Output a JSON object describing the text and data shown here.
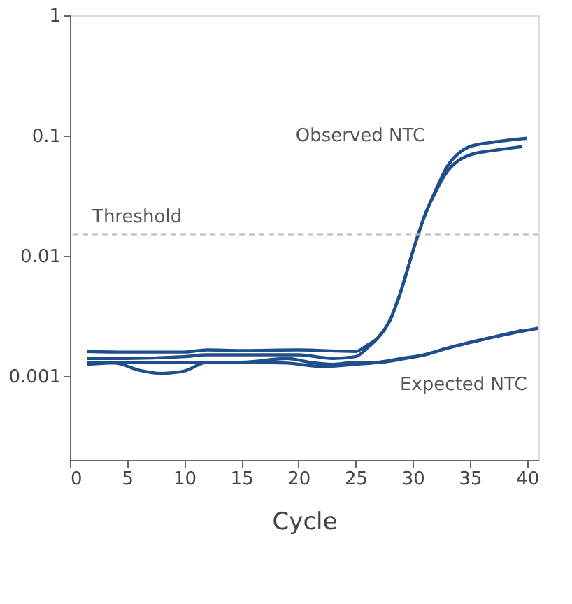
{
  "chart_data": {
    "type": "line",
    "xlabel": "Cycle",
    "log": "y",
    "grid": false,
    "marker": "none",
    "line_style": "solid",
    "xlim": [
      0,
      41
    ],
    "xticks": [
      0,
      5,
      10,
      15,
      20,
      25,
      30,
      35,
      40
    ],
    "ylim": [
      0.0002,
      1
    ],
    "yticks": [
      1,
      0.1,
      0.01,
      0.001
    ],
    "ref_lines": [
      {
        "axis": "y",
        "value": 0.015,
        "label": "Threshold",
        "color": "#bbbbbb",
        "line_style": "dashed"
      }
    ],
    "annotations": [
      "Observed NTC",
      "Expected NTC"
    ],
    "series": [
      {
        "color": "#1f4e8c",
        "x": [
          1.5,
          5,
          10,
          12,
          15,
          20,
          25,
          26,
          27,
          28,
          29,
          30,
          31,
          32,
          33,
          34,
          35,
          37,
          40
        ],
        "values": [
          0.0016,
          0.00158,
          0.00158,
          0.00165,
          0.00163,
          0.00165,
          0.0016,
          0.0018,
          0.0021,
          0.0029,
          0.0052,
          0.0108,
          0.021,
          0.035,
          0.055,
          0.071,
          0.081,
          0.088,
          0.095
        ]
      },
      {
        "color": "#1f4e8c",
        "x": [
          1.5,
          5,
          10,
          12,
          15,
          20,
          23,
          25,
          26,
          27,
          28,
          29,
          30,
          31,
          32,
          33,
          34,
          35,
          37,
          39.6
        ],
        "values": [
          0.0014,
          0.0014,
          0.00145,
          0.0015,
          0.0015,
          0.0015,
          0.0014,
          0.00145,
          0.0017,
          0.0021,
          0.0029,
          0.0052,
          0.0108,
          0.021,
          0.034,
          0.05,
          0.062,
          0.069,
          0.075,
          0.081
        ]
      },
      {
        "color": "#1f4e8c",
        "x": [
          1.5,
          4,
          6,
          8,
          10,
          12,
          15,
          19,
          22,
          25,
          27,
          29,
          31,
          33,
          35,
          37,
          41
        ],
        "values": [
          0.0013,
          0.00128,
          0.00112,
          0.00105,
          0.0011,
          0.0013,
          0.0013,
          0.00128,
          0.0012,
          0.00125,
          0.0013,
          0.0014,
          0.0015,
          0.0017,
          0.0019,
          0.0021,
          0.0025
        ]
      },
      {
        "color": "#1f4e8c",
        "x": [
          1.5,
          5,
          10,
          15,
          19,
          21,
          23,
          25,
          27,
          29,
          31,
          33,
          35,
          37,
          39.6
        ],
        "values": [
          0.00125,
          0.0013,
          0.0013,
          0.0013,
          0.0014,
          0.0013,
          0.00125,
          0.0013,
          0.0013,
          0.00138,
          0.0015,
          0.0017,
          0.0019,
          0.0021,
          0.0024
        ]
      }
    ]
  }
}
